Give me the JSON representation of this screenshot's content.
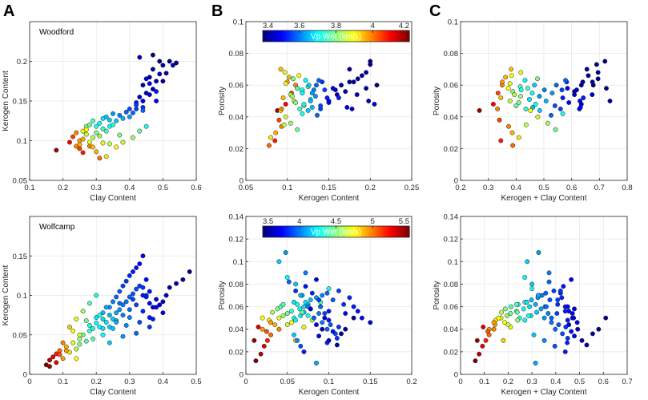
{
  "panel_letters": [
    "A",
    "B",
    "C"
  ],
  "colorbars": [
    {
      "label": "Vp Wet (km/s)",
      "ticks": [
        "3.4",
        "3.6",
        "3.8",
        "4",
        "4.2"
      ],
      "range": [
        3.4,
        4.2
      ]
    },
    {
      "label": "Vp Wet (km/s)",
      "ticks": [
        "3.5",
        "4",
        "4.5",
        "5",
        "5.5"
      ],
      "range": [
        3.5,
        5.5
      ]
    }
  ],
  "chart_data": [
    {
      "type": "scatter",
      "title": "Woodford",
      "xlabel": "Clay Content",
      "ylabel": "Kerogen Content",
      "xlim": [
        0.1,
        0.6
      ],
      "ylim": [
        0.05,
        0.25
      ],
      "xticks": [
        "0.1",
        "0.2",
        "0.3",
        "0.4",
        "0.5",
        "0.6"
      ],
      "yticks": [
        "0.05",
        "0.1",
        "0.15",
        "0.2"
      ],
      "x_field": "clay",
      "y_field": "kerogen",
      "formation": "woodford"
    },
    {
      "type": "scatter",
      "title": "",
      "xlabel": "Kerogen Content",
      "ylabel": "Porosity",
      "xlim": [
        0.05,
        0.25
      ],
      "ylim": [
        0,
        0.1
      ],
      "xticks": [
        "0.05",
        "0.1",
        "0.15",
        "0.2",
        "0.25"
      ],
      "yticks": [
        "0",
        "0.02",
        "0.04",
        "0.06",
        "0.08",
        "0.1"
      ],
      "x_field": "kerogen",
      "y_field": "porosity",
      "formation": "woodford",
      "colorbar": 0
    },
    {
      "type": "scatter",
      "title": "",
      "xlabel": "Kerogen + Clay Content",
      "ylabel": "Porosity",
      "xlim": [
        0.2,
        0.8
      ],
      "ylim": [
        0,
        0.1
      ],
      "xticks": [
        "0.2",
        "0.3",
        "0.4",
        "0.5",
        "0.6",
        "0.7",
        "0.8"
      ],
      "yticks": [
        "0",
        "0.02",
        "0.04",
        "0.06",
        "0.08",
        "0.1"
      ],
      "x_field": "sum",
      "y_field": "porosity",
      "formation": "woodford"
    },
    {
      "type": "scatter",
      "title": "Wolfcamp",
      "xlabel": "Clay Content",
      "ylabel": "Kerogen Content",
      "xlim": [
        0,
        0.5
      ],
      "ylim": [
        0,
        0.2
      ],
      "xticks": [
        "0",
        "0.1",
        "0.2",
        "0.3",
        "0.4",
        "0.5"
      ],
      "yticks": [
        "0",
        "0.05",
        "0.1",
        "0.15"
      ],
      "x_field": "clay",
      "y_field": "kerogen",
      "formation": "wolfcamp"
    },
    {
      "type": "scatter",
      "title": "",
      "xlabel": "Kerogen Content",
      "ylabel": "Porosity",
      "xlim": [
        0,
        0.2
      ],
      "ylim": [
        0,
        0.14
      ],
      "xticks": [
        "0",
        "0.05",
        "0.1",
        "0.15",
        "0.2"
      ],
      "yticks": [
        "0",
        "0.02",
        "0.04",
        "0.06",
        "0.08",
        "0.1",
        "0.12",
        "0.14"
      ],
      "x_field": "kerogen",
      "y_field": "porosity",
      "formation": "wolfcamp",
      "colorbar": 1
    },
    {
      "type": "scatter",
      "title": "",
      "xlabel": "Kerogen + Clay Content",
      "ylabel": "Porosity",
      "xlim": [
        0,
        0.7
      ],
      "ylim": [
        0,
        0.14
      ],
      "xticks": [
        "0",
        "0.1",
        "0.2",
        "0.3",
        "0.4",
        "0.5",
        "0.6",
        "0.7"
      ],
      "yticks": [
        "0",
        "0.02",
        "0.04",
        "0.06",
        "0.08",
        "0.1",
        "0.12",
        "0.14"
      ],
      "x_field": "sum",
      "y_field": "porosity",
      "formation": "wolfcamp"
    }
  ],
  "samples": {
    "woodford": {
      "clay": [
        0.18,
        0.22,
        0.23,
        0.24,
        0.25,
        0.25,
        0.26,
        0.26,
        0.27,
        0.27,
        0.28,
        0.28,
        0.29,
        0.29,
        0.3,
        0.3,
        0.31,
        0.31,
        0.32,
        0.32,
        0.33,
        0.33,
        0.34,
        0.34,
        0.35,
        0.35,
        0.36,
        0.37,
        0.38,
        0.39,
        0.4,
        0.4,
        0.41,
        0.42,
        0.42,
        0.43,
        0.44,
        0.44,
        0.45,
        0.46,
        0.47,
        0.48,
        0.5,
        0.25,
        0.28,
        0.3,
        0.33,
        0.36,
        0.38,
        0.41,
        0.43,
        0.45,
        0.27,
        0.32,
        0.37,
        0.26,
        0.29,
        0.31,
        0.34,
        0.24,
        0.44,
        0.46,
        0.47,
        0.48,
        0.49,
        0.5,
        0.51,
        0.52,
        0.53,
        0.54,
        0.43,
        0.45,
        0.47,
        0.49,
        0.46,
        0.48,
        0.42,
        0.44
      ],
      "kerogen": [
        0.088,
        0.098,
        0.105,
        0.11,
        0.095,
        0.1,
        0.112,
        0.102,
        0.108,
        0.118,
        0.098,
        0.12,
        0.104,
        0.125,
        0.11,
        0.118,
        0.106,
        0.122,
        0.115,
        0.128,
        0.112,
        0.13,
        0.118,
        0.126,
        0.12,
        0.134,
        0.125,
        0.132,
        0.128,
        0.136,
        0.13,
        0.14,
        0.135,
        0.148,
        0.14,
        0.155,
        0.15,
        0.142,
        0.16,
        0.158,
        0.165,
        0.15,
        0.175,
        0.09,
        0.093,
        0.086,
        0.08,
        0.092,
        0.098,
        0.104,
        0.112,
        0.118,
        0.114,
        0.097,
        0.107,
        0.085,
        0.092,
        0.078,
        0.096,
        0.093,
        0.17,
        0.18,
        0.19,
        0.175,
        0.2,
        0.195,
        0.185,
        0.2,
        0.195,
        0.198,
        0.205,
        0.178,
        0.208,
        0.184,
        0.172,
        0.162,
        0.145,
        0.138
      ],
      "porosity": [
        0.044,
        0.048,
        0.055,
        0.06,
        0.052,
        0.062,
        0.058,
        0.065,
        0.05,
        0.056,
        0.061,
        0.047,
        0.054,
        0.059,
        0.049,
        0.057,
        0.053,
        0.063,
        0.045,
        0.051,
        0.058,
        0.046,
        0.055,
        0.06,
        0.048,
        0.053,
        0.044,
        0.057,
        0.05,
        0.041,
        0.055,
        0.047,
        0.06,
        0.052,
        0.045,
        0.058,
        0.049,
        0.062,
        0.054,
        0.057,
        0.06,
        0.05,
        0.062,
        0.038,
        0.034,
        0.03,
        0.027,
        0.044,
        0.04,
        0.036,
        0.032,
        0.042,
        0.066,
        0.068,
        0.064,
        0.025,
        0.07,
        0.022,
        0.035,
        0.045,
        0.056,
        0.062,
        0.066,
        0.07,
        0.073,
        0.068,
        0.064,
        0.075,
        0.058,
        0.05,
        0.048,
        0.045,
        0.06,
        0.054,
        0.046,
        0.052,
        0.057,
        0.063
      ],
      "vp": [
        4.18,
        4.1,
        4.05,
        4.0,
        3.95,
        3.98,
        3.9,
        3.96,
        3.85,
        3.8,
        3.88,
        3.78,
        3.84,
        3.75,
        3.8,
        3.72,
        3.82,
        3.7,
        3.74,
        3.68,
        3.76,
        3.65,
        3.7,
        3.66,
        3.72,
        3.62,
        3.66,
        3.6,
        3.64,
        3.58,
        3.62,
        3.56,
        3.58,
        3.52,
        3.55,
        3.48,
        3.5,
        3.54,
        3.45,
        3.46,
        3.44,
        3.5,
        3.42,
        4.05,
        4.0,
        3.96,
        3.92,
        3.9,
        3.86,
        3.82,
        3.78,
        3.72,
        3.9,
        3.88,
        3.8,
        4.08,
        3.95,
        4.02,
        3.85,
        4.0,
        3.44,
        3.42,
        3.42,
        3.43,
        3.41,
        3.42,
        3.43,
        3.41,
        3.42,
        3.44,
        3.46,
        3.48,
        3.41,
        3.45,
        3.5,
        3.52,
        3.55,
        3.58
      ]
    },
    "wolfcamp": {
      "clay": [
        0.05,
        0.06,
        0.07,
        0.08,
        0.09,
        0.1,
        0.11,
        0.12,
        0.13,
        0.14,
        0.15,
        0.15,
        0.16,
        0.17,
        0.18,
        0.18,
        0.19,
        0.2,
        0.2,
        0.21,
        0.22,
        0.22,
        0.23,
        0.24,
        0.24,
        0.25,
        0.25,
        0.26,
        0.26,
        0.27,
        0.27,
        0.28,
        0.28,
        0.29,
        0.29,
        0.3,
        0.3,
        0.31,
        0.31,
        0.32,
        0.32,
        0.33,
        0.33,
        0.34,
        0.34,
        0.35,
        0.35,
        0.36,
        0.36,
        0.37,
        0.38,
        0.39,
        0.4,
        0.41,
        0.42,
        0.44,
        0.46,
        0.48,
        0.12,
        0.14,
        0.16,
        0.18,
        0.2,
        0.22,
        0.24,
        0.26,
        0.28,
        0.3,
        0.32,
        0.34,
        0.36,
        0.38,
        0.4,
        0.1,
        0.13,
        0.17,
        0.21,
        0.25,
        0.29,
        0.33,
        0.37,
        0.23,
        0.27,
        0.31,
        0.35,
        0.19,
        0.15,
        0.11,
        0.08,
        0.06,
        0.09,
        0.14,
        0.24,
        0.28,
        0.32,
        0.36,
        0.3,
        0.26,
        0.22,
        0.34
      ],
      "kerogen": [
        0.012,
        0.018,
        0.022,
        0.026,
        0.03,
        0.02,
        0.035,
        0.028,
        0.04,
        0.032,
        0.045,
        0.038,
        0.05,
        0.042,
        0.055,
        0.062,
        0.058,
        0.065,
        0.072,
        0.06,
        0.07,
        0.078,
        0.066,
        0.075,
        0.085,
        0.07,
        0.092,
        0.078,
        0.098,
        0.082,
        0.105,
        0.088,
        0.112,
        0.092,
        0.118,
        0.098,
        0.125,
        0.102,
        0.13,
        0.108,
        0.135,
        0.112,
        0.14,
        0.11,
        0.15,
        0.098,
        0.12,
        0.105,
        0.09,
        0.085,
        0.095,
        0.088,
        0.092,
        0.1,
        0.11,
        0.115,
        0.12,
        0.13,
        0.06,
        0.07,
        0.08,
        0.09,
        0.1,
        0.05,
        0.06,
        0.068,
        0.075,
        0.082,
        0.088,
        0.08,
        0.072,
        0.085,
        0.078,
        0.04,
        0.055,
        0.068,
        0.075,
        0.058,
        0.062,
        0.066,
        0.07,
        0.085,
        0.09,
        0.095,
        0.1,
        0.045,
        0.05,
        0.03,
        0.015,
        0.01,
        0.025,
        0.02,
        0.04,
        0.048,
        0.052,
        0.06,
        0.072,
        0.066,
        0.058,
        0.1
      ],
      "porosity": [
        0.012,
        0.018,
        0.025,
        0.03,
        0.035,
        0.04,
        0.044,
        0.048,
        0.05,
        0.055,
        0.052,
        0.058,
        0.054,
        0.06,
        0.056,
        0.062,
        0.05,
        0.058,
        0.064,
        0.048,
        0.06,
        0.066,
        0.052,
        0.062,
        0.068,
        0.055,
        0.07,
        0.058,
        0.072,
        0.05,
        0.066,
        0.054,
        0.074,
        0.046,
        0.062,
        0.04,
        0.068,
        0.044,
        0.06,
        0.036,
        0.056,
        0.042,
        0.05,
        0.032,
        0.046,
        0.028,
        0.054,
        0.038,
        0.06,
        0.044,
        0.05,
        0.034,
        0.04,
        0.03,
        0.026,
        0.036,
        0.04,
        0.05,
        0.03,
        0.042,
        0.048,
        0.064,
        0.076,
        0.086,
        0.08,
        0.07,
        0.06,
        0.05,
        0.066,
        0.072,
        0.078,
        0.084,
        0.058,
        0.04,
        0.046,
        0.055,
        0.052,
        0.035,
        0.03,
        0.025,
        0.02,
        0.01,
        0.06,
        0.054,
        0.048,
        0.062,
        0.044,
        0.046,
        0.042,
        0.03,
        0.038,
        0.05,
        0.1,
        0.108,
        0.082,
        0.074,
        0.09,
        0.07,
        0.064,
        0.056
      ],
      "vp": [
        5.5,
        5.4,
        5.3,
        5.2,
        5.05,
        4.95,
        4.9,
        4.8,
        4.7,
        4.6,
        4.55,
        4.5,
        4.45,
        4.4,
        4.35,
        4.3,
        4.3,
        4.25,
        4.2,
        4.25,
        4.18,
        4.12,
        4.2,
        4.1,
        4.05,
        4.15,
        4.0,
        4.08,
        3.95,
        4.05,
        3.92,
        4.0,
        3.88,
        3.98,
        3.85,
        3.95,
        3.82,
        3.92,
        3.8,
        3.9,
        3.78,
        3.86,
        3.74,
        3.85,
        3.7,
        3.82,
        3.76,
        3.78,
        3.74,
        3.72,
        3.7,
        3.68,
        3.65,
        3.62,
        3.6,
        3.58,
        3.55,
        3.52,
        4.85,
        4.7,
        4.55,
        4.4,
        4.3,
        4.25,
        4.15,
        4.1,
        4.0,
        3.95,
        3.88,
        3.82,
        3.78,
        3.72,
        3.68,
        5.0,
        4.75,
        4.45,
        4.3,
        4.15,
        4.02,
        3.9,
        3.8,
        4.08,
        3.96,
        3.88,
        3.8,
        4.4,
        4.65,
        4.95,
        5.3,
        5.45,
        5.1,
        4.75,
        4.15,
        4.05,
        3.95,
        3.85,
        4.0,
        4.1,
        4.2,
        3.8
      ]
    }
  }
}
